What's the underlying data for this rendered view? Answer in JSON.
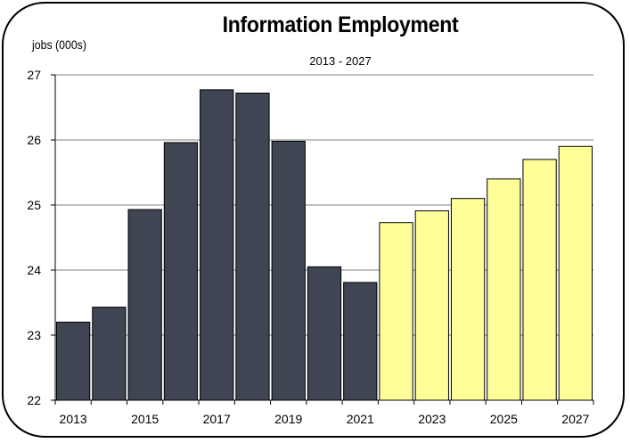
{
  "chart_data": {
    "type": "bar",
    "title": "Information Employment",
    "subtitle": "2013 - 2027",
    "ylabel": "jobs (000s)",
    "xlabel": "",
    "ylim": [
      22,
      27
    ],
    "yticks": [
      "22",
      "23",
      "24",
      "25",
      "26",
      "27"
    ],
    "x_tick_labels": [
      "2013",
      "2015",
      "2017",
      "2019",
      "2021",
      "2023",
      "2025",
      "2027"
    ],
    "categories": [
      "2013",
      "2014",
      "2015",
      "2016",
      "2017",
      "2018",
      "2019",
      "2020",
      "2021",
      "2022",
      "2023",
      "2024",
      "2025",
      "2026",
      "2027"
    ],
    "values": [
      23.2,
      23.43,
      24.93,
      25.96,
      26.77,
      26.72,
      25.98,
      24.05,
      23.81,
      24.73,
      24.91,
      25.1,
      25.4,
      25.7,
      25.9
    ],
    "grid": true,
    "colors": {
      "historical": "#3f4552",
      "projected": "#ffff99",
      "bar_edge": "#000000",
      "gridline": "#808080"
    },
    "projected_from": "2022"
  }
}
